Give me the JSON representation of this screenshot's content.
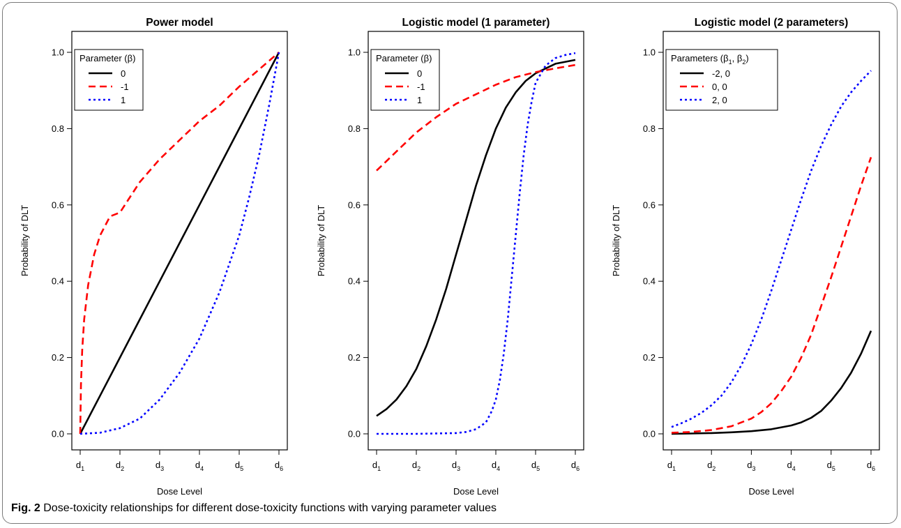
{
  "caption": {
    "label": "Fig. 2",
    "text": "Dose-toxicity relationships for different dose-toxicity functions with varying parameter values"
  },
  "chart_data": [
    {
      "type": "line",
      "title": "Power model",
      "xlabel": "Dose Level",
      "ylabel": "Probability of DLT",
      "x_ticks": [
        {
          "base": "d",
          "sub": "1"
        },
        {
          "base": "d",
          "sub": "2"
        },
        {
          "base": "d",
          "sub": "3"
        },
        {
          "base": "d",
          "sub": "4"
        },
        {
          "base": "d",
          "sub": "5"
        },
        {
          "base": "d",
          "sub": "6"
        }
      ],
      "xlim": [
        1,
        6
      ],
      "ylim": [
        0,
        1
      ],
      "y_ticks": [
        "0.0",
        "0.2",
        "0.4",
        "0.6",
        "0.8",
        "1.0"
      ],
      "legend": {
        "title": "Parameter (β)",
        "title_parts": [
          {
            "t": "Parameter (β)"
          }
        ],
        "position": "top-left"
      },
      "series": [
        {
          "name": "0",
          "color": "#000000",
          "style": "solid",
          "x": [
            1,
            1.5,
            2,
            2.5,
            3,
            3.5,
            4,
            4.5,
            5,
            5.5,
            6
          ],
          "y": [
            0.0,
            0.1,
            0.2,
            0.3,
            0.4,
            0.5,
            0.6,
            0.7,
            0.8,
            0.9,
            1.0
          ]
        },
        {
          "name": "-1",
          "color": "#ff0000",
          "style": "dashed",
          "x": [
            1,
            1.02,
            1.05,
            1.1,
            1.2,
            1.35,
            1.5,
            1.75,
            2,
            2.5,
            3,
            3.5,
            4,
            4.5,
            5,
            5.5,
            6
          ],
          "y": [
            0.0,
            0.13,
            0.22,
            0.3,
            0.39,
            0.47,
            0.52,
            0.57,
            0.58,
            0.66,
            0.72,
            0.77,
            0.82,
            0.86,
            0.91,
            0.955,
            1.0
          ]
        },
        {
          "name": "1",
          "color": "#0000ff",
          "style": "dotted",
          "x": [
            1,
            1.5,
            2,
            2.5,
            3,
            3.5,
            4,
            4.5,
            5,
            5.25,
            5.5,
            5.75,
            6
          ],
          "y": [
            0.0,
            0.003,
            0.015,
            0.04,
            0.09,
            0.16,
            0.25,
            0.37,
            0.52,
            0.62,
            0.73,
            0.86,
            1.0
          ]
        }
      ]
    },
    {
      "type": "line",
      "title": "Logistic model (1 parameter)",
      "xlabel": "Dose Level",
      "ylabel": "Probability of DLT",
      "x_ticks": [
        {
          "base": "d",
          "sub": "1"
        },
        {
          "base": "d",
          "sub": "2"
        },
        {
          "base": "d",
          "sub": "3"
        },
        {
          "base": "d",
          "sub": "4"
        },
        {
          "base": "d",
          "sub": "5"
        },
        {
          "base": "d",
          "sub": "6"
        }
      ],
      "xlim": [
        1,
        6
      ],
      "ylim": [
        0,
        1
      ],
      "y_ticks": [
        "0.0",
        "0.2",
        "0.4",
        "0.6",
        "0.8",
        "1.0"
      ],
      "legend": {
        "title": "Parameter (β)",
        "title_parts": [
          {
            "t": "Parameter (β)"
          }
        ],
        "position": "top-left"
      },
      "series": [
        {
          "name": "0",
          "color": "#000000",
          "style": "solid",
          "x": [
            1,
            1.25,
            1.5,
            1.75,
            2,
            2.25,
            2.5,
            2.75,
            3,
            3.25,
            3.5,
            3.75,
            4,
            4.25,
            4.5,
            4.75,
            5,
            5.5,
            6
          ],
          "y": [
            0.047,
            0.065,
            0.09,
            0.125,
            0.17,
            0.23,
            0.3,
            0.38,
            0.47,
            0.56,
            0.65,
            0.73,
            0.8,
            0.855,
            0.895,
            0.925,
            0.945,
            0.97,
            0.98
          ]
        },
        {
          "name": "-1",
          "color": "#ff0000",
          "style": "dashed",
          "x": [
            1,
            1.5,
            2,
            2.5,
            3,
            3.5,
            4,
            4.5,
            5,
            5.5,
            6
          ],
          "y": [
            0.69,
            0.74,
            0.79,
            0.83,
            0.865,
            0.89,
            0.915,
            0.935,
            0.948,
            0.958,
            0.967
          ]
        },
        {
          "name": "1",
          "color": "#0000ff",
          "style": "dotted",
          "x": [
            1,
            2,
            3,
            3.25,
            3.5,
            3.75,
            3.9,
            4,
            4.1,
            4.2,
            4.3,
            4.4,
            4.5,
            4.6,
            4.7,
            4.8,
            4.9,
            5,
            5.25,
            5.5,
            5.75,
            6
          ],
          "y": [
            0.0,
            0.0,
            0.002,
            0.005,
            0.012,
            0.03,
            0.06,
            0.09,
            0.14,
            0.21,
            0.3,
            0.41,
            0.52,
            0.63,
            0.73,
            0.81,
            0.87,
            0.92,
            0.965,
            0.985,
            0.993,
            0.998
          ]
        }
      ]
    },
    {
      "type": "line",
      "title": "Logistic model (2 parameters)",
      "xlabel": "Dose Level",
      "ylabel": "Probability of DLT",
      "x_ticks": [
        {
          "base": "d",
          "sub": "1"
        },
        {
          "base": "d",
          "sub": "2"
        },
        {
          "base": "d",
          "sub": "3"
        },
        {
          "base": "d",
          "sub": "4"
        },
        {
          "base": "d",
          "sub": "5"
        },
        {
          "base": "d",
          "sub": "6"
        }
      ],
      "xlim": [
        1,
        6
      ],
      "ylim": [
        0,
        1
      ],
      "y_ticks": [
        "0.0",
        "0.2",
        "0.4",
        "0.6",
        "0.8",
        "1.0"
      ],
      "legend": {
        "title": "Parameters (β1, β2)",
        "title_parts": [
          {
            "t": "Parameters (β"
          },
          {
            "t": "1",
            "sub": true
          },
          {
            "t": ", β"
          },
          {
            "t": "2",
            "sub": true
          },
          {
            "t": ")"
          }
        ],
        "position": "top-left"
      },
      "series": [
        {
          "name": "-2, 0",
          "color": "#000000",
          "style": "solid",
          "x": [
            1,
            1.5,
            2,
            2.5,
            3,
            3.5,
            4,
            4.25,
            4.5,
            4.75,
            5,
            5.25,
            5.5,
            5.75,
            6
          ],
          "y": [
            0.0,
            0.001,
            0.002,
            0.004,
            0.007,
            0.012,
            0.022,
            0.03,
            0.042,
            0.06,
            0.087,
            0.12,
            0.16,
            0.21,
            0.27
          ]
        },
        {
          "name": "0, 0",
          "color": "#ff0000",
          "style": "dashed",
          "x": [
            1,
            1.5,
            2,
            2.5,
            3,
            3.25,
            3.5,
            3.75,
            4,
            4.25,
            4.5,
            4.75,
            5,
            5.25,
            5.5,
            5.75,
            6
          ],
          "y": [
            0.003,
            0.005,
            0.01,
            0.02,
            0.04,
            0.057,
            0.08,
            0.112,
            0.15,
            0.2,
            0.26,
            0.335,
            0.41,
            0.49,
            0.57,
            0.65,
            0.725
          ]
        },
        {
          "name": "2, 0",
          "color": "#0000ff",
          "style": "dotted",
          "x": [
            1,
            1.25,
            1.5,
            1.75,
            2,
            2.25,
            2.5,
            2.75,
            3,
            3.25,
            3.5,
            3.75,
            4,
            4.25,
            4.5,
            4.75,
            5,
            5.25,
            5.5,
            5.75,
            6
          ],
          "y": [
            0.018,
            0.028,
            0.04,
            0.055,
            0.075,
            0.1,
            0.135,
            0.18,
            0.235,
            0.3,
            0.375,
            0.455,
            0.535,
            0.615,
            0.69,
            0.755,
            0.81,
            0.858,
            0.895,
            0.925,
            0.952
          ]
        }
      ]
    }
  ]
}
